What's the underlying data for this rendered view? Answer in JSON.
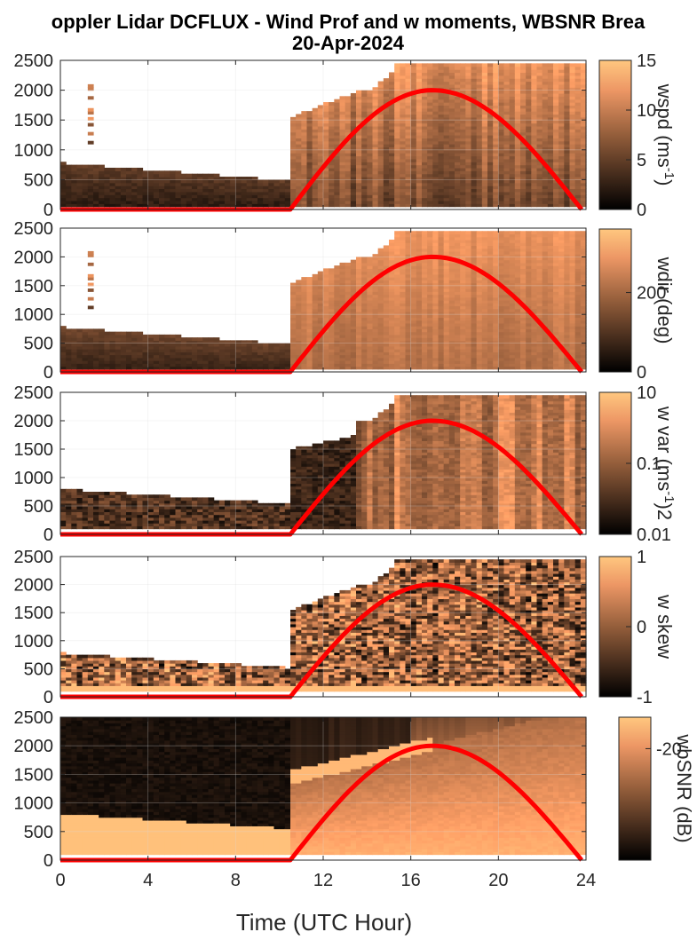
{
  "figure": {
    "title_line1": "oppler Lidar DCFLUX - Wind Prof and w moments, WBSNR Brea",
    "title_line2": "20-Apr-2024",
    "xlabel": "Time (UTC Hour)"
  },
  "colors": {
    "curve": "#ff0000",
    "grid": "#d9d9d9",
    "axis": "#262626",
    "missing": "#ffffff"
  },
  "chart_data": [
    {
      "id": "wspd",
      "type": "heatmap",
      "colormap": "copper",
      "xlim": [
        0,
        24
      ],
      "ylim": [
        0,
        2500
      ],
      "yticks": [
        "0",
        "500",
        "1000",
        "1500",
        "2000",
        "2500"
      ],
      "xticks": [
        "0",
        "4",
        "8",
        "12",
        "16",
        "20",
        "24"
      ],
      "show_xticklabels": false,
      "colorbar": {
        "label": "wspd (ms-1)",
        "label_main": "wspd (ms",
        "label_sup": "-1",
        "label_end": ")",
        "ticks": [
          "0",
          "5",
          "10",
          "15"
        ],
        "range": [
          0,
          15
        ]
      },
      "valid_range": {
        "base_top_before_11": 750,
        "jump_hour": 10.5,
        "top_max": 2450
      },
      "curve": {
        "name": "",
        "start_hour": 10.5,
        "peak_hour": 17.0,
        "end_hour": 23.8,
        "peak_value": 2000
      }
    },
    {
      "id": "wdir",
      "type": "heatmap",
      "colormap": "copper",
      "xlim": [
        0,
        24
      ],
      "ylim": [
        0,
        2500
      ],
      "yticks": [
        "0",
        "500",
        "1000",
        "1500",
        "2000",
        "2500"
      ],
      "xticks": [
        "0",
        "4",
        "8",
        "12",
        "16",
        "20",
        "24"
      ],
      "show_xticklabels": false,
      "colorbar": {
        "label": "wdir (deg)",
        "label_main": "wdir (deg)",
        "label_sup": "",
        "label_end": "",
        "ticks": [
          "0",
          "200"
        ],
        "range": [
          0,
          360
        ]
      },
      "curve": {
        "name": "",
        "start_hour": 10.5,
        "peak_hour": 17.0,
        "end_hour": 23.8,
        "peak_value": 2000
      }
    },
    {
      "id": "wvar",
      "type": "heatmap",
      "colormap": "copper",
      "xlim": [
        0,
        24
      ],
      "ylim": [
        0,
        2500
      ],
      "yticks": [
        "0",
        "500",
        "1000",
        "1500",
        "2000",
        "2500"
      ],
      "xticks": [
        "0",
        "4",
        "8",
        "12",
        "16",
        "20",
        "24"
      ],
      "show_xticklabels": false,
      "colorbar": {
        "label": "w var (ms-1)2",
        "label_main": "w var (ms",
        "label_sup": "-1",
        "label_end": ")2",
        "ticks": [
          "0.01",
          "0.1",
          "10"
        ],
        "tick_positions": [
          0,
          0.5,
          1
        ]
      },
      "curve": {
        "name": "",
        "start_hour": 10.5,
        "peak_hour": 17.0,
        "end_hour": 23.8,
        "peak_value": 2000
      }
    },
    {
      "id": "wskew",
      "type": "heatmap",
      "colormap": "copper",
      "xlim": [
        0,
        24
      ],
      "ylim": [
        0,
        2500
      ],
      "yticks": [
        "0",
        "500",
        "1000",
        "1500",
        "2000",
        "2500"
      ],
      "xticks": [
        "0",
        "4",
        "8",
        "12",
        "16",
        "20",
        "24"
      ],
      "show_xticklabels": false,
      "colorbar": {
        "label": "w skew",
        "label_main": "w skew",
        "label_sup": "",
        "label_end": "",
        "ticks": [
          "-1",
          "0",
          "1"
        ],
        "range": [
          -1,
          1
        ]
      },
      "curve": {
        "name": "",
        "start_hour": 10.5,
        "peak_hour": 17.0,
        "end_hour": 23.8,
        "peak_value": 2000
      }
    },
    {
      "id": "wbsnr",
      "type": "heatmap",
      "colormap": "copper",
      "xlim": [
        0,
        24
      ],
      "ylim": [
        0,
        2500
      ],
      "yticks": [
        "0",
        "500",
        "1000",
        "1500",
        "2000",
        "2500"
      ],
      "xticks": [
        "0",
        "4",
        "8",
        "12",
        "16",
        "20",
        "24"
      ],
      "show_xticklabels": true,
      "colorbar": {
        "label": "wbSNR (dB)",
        "label_main": "wbSNR (dB)",
        "label_sup": "",
        "label_end": "",
        "ticks": [
          "-20"
        ],
        "tick_positions": [
          0.78
        ]
      },
      "curve": {
        "name": "",
        "start_hour": 10.5,
        "peak_hour": 17.0,
        "end_hour": 23.8,
        "peak_value": 2000
      }
    }
  ]
}
